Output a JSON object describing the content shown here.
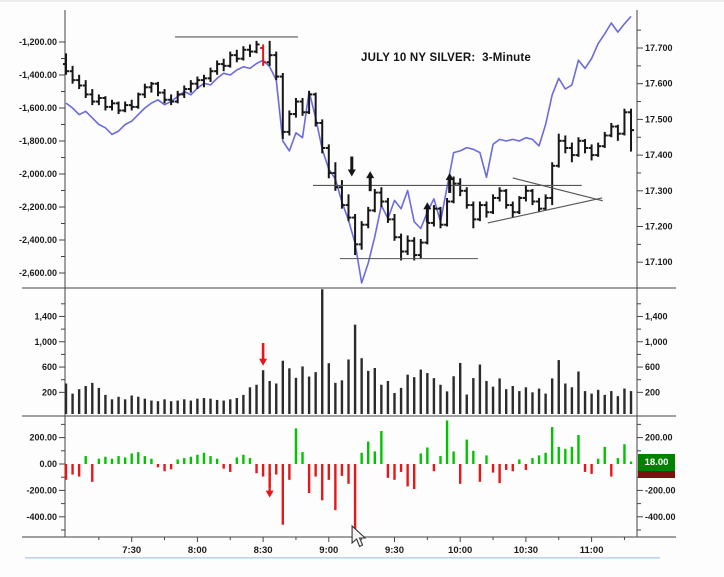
{
  "header": {
    "title": "JULY 10 NY SILVER:  3-Minute"
  },
  "last_value_badge": {
    "value": "18.00"
  },
  "colors": {
    "price_bar": "#161616",
    "highlight_bar": "#e81717",
    "ma_line": "#6b6bdf",
    "volume_bar": "#2b2b2b",
    "up_delta": "#00c400",
    "down_delta": "#e81717",
    "annotation": "#555555",
    "badge_bg": "#008200",
    "badge_underline": "#7c1010",
    "hairline": "#aecdf2",
    "axis": "#444444"
  },
  "chart_data": {
    "type": "ohlc+volume+delta multi-panel bar chart",
    "title": "JULY 10 NY SILVER:  3-Minute",
    "interval": "3-Minute",
    "x_ticks": [
      {
        "slot": 10,
        "label": "7:30"
      },
      {
        "slot": 20,
        "label": "8:00"
      },
      {
        "slot": 30,
        "label": "8:30"
      },
      {
        "slot": 40,
        "label": "9:00"
      },
      {
        "slot": 50,
        "label": "9:30"
      },
      {
        "slot": 60,
        "label": "10:00"
      },
      {
        "slot": 70,
        "label": "10:30"
      },
      {
        "slot": 80,
        "label": "11:00"
      }
    ],
    "axes": {
      "price_left": [
        {
          "v": -1200,
          "label": "-1,200.00"
        },
        {
          "v": -1400,
          "label": "-1,400.00"
        },
        {
          "v": -1600,
          "label": "-1,600.00"
        },
        {
          "v": -1800,
          "label": "-1,800.00"
        },
        {
          "v": -2000,
          "label": "-2,000.00"
        },
        {
          "v": -2200,
          "label": "-2,200.00"
        },
        {
          "v": -2400,
          "label": "-2,400.00"
        },
        {
          "v": -2600,
          "label": "-2,600.00"
        }
      ],
      "price_right": [
        {
          "v": 17.7,
          "label": "17.700"
        },
        {
          "v": 17.6,
          "label": "17.600"
        },
        {
          "v": 17.5,
          "label": "17.500"
        },
        {
          "v": 17.4,
          "label": "17.400"
        },
        {
          "v": 17.3,
          "label": "17.300"
        },
        {
          "v": 17.2,
          "label": "17.200"
        },
        {
          "v": 17.1,
          "label": "17.100"
        }
      ],
      "volume": [
        {
          "v": 1400,
          "label": "1,400"
        },
        {
          "v": 1000,
          "label": "1,000"
        },
        {
          "v": 600,
          "label": "600"
        },
        {
          "v": 200,
          "label": "200"
        }
      ],
      "delta_left": [
        {
          "v": 200,
          "label": "200.00"
        },
        {
          "v": 0,
          "label": "0.00"
        },
        {
          "v": -200,
          "label": "-200.00"
        },
        {
          "v": -400,
          "label": "-400.00"
        }
      ],
      "delta_right": [
        {
          "v": 200,
          "label": "200.00"
        },
        {
          "v": -200,
          "label": "-200.00"
        },
        {
          "v": -400,
          "label": "-400.00"
        }
      ]
    },
    "bars_ohlc": [
      [
        17.655,
        17.685,
        17.625,
        17.635
      ],
      [
        17.635,
        17.65,
        17.6,
        17.61
      ],
      [
        17.61,
        17.625,
        17.585,
        17.595
      ],
      [
        17.595,
        17.61,
        17.56,
        17.57
      ],
      [
        17.57,
        17.585,
        17.54,
        17.55
      ],
      [
        17.55,
        17.57,
        17.54,
        17.56
      ],
      [
        17.56,
        17.565,
        17.525,
        17.535
      ],
      [
        17.535,
        17.555,
        17.525,
        17.545
      ],
      [
        17.545,
        17.55,
        17.515,
        17.525
      ],
      [
        17.525,
        17.55,
        17.52,
        17.54
      ],
      [
        17.54,
        17.555,
        17.525,
        17.535
      ],
      [
        17.535,
        17.575,
        17.53,
        17.57
      ],
      [
        17.57,
        17.6,
        17.56,
        17.59
      ],
      [
        17.59,
        17.605,
        17.575,
        17.6
      ],
      [
        17.6,
        17.605,
        17.565,
        17.575
      ],
      [
        17.575,
        17.585,
        17.545,
        17.555
      ],
      [
        17.555,
        17.57,
        17.54,
        17.55
      ],
      [
        17.55,
        17.58,
        17.545,
        17.57
      ],
      [
        17.57,
        17.595,
        17.56,
        17.585
      ],
      [
        17.585,
        17.61,
        17.575,
        17.6
      ],
      [
        17.6,
        17.62,
        17.585,
        17.61
      ],
      [
        17.61,
        17.625,
        17.59,
        17.615
      ],
      [
        17.615,
        17.645,
        17.605,
        17.635
      ],
      [
        17.635,
        17.665,
        17.625,
        17.655
      ],
      [
        17.655,
        17.67,
        17.635,
        17.65
      ],
      [
        17.65,
        17.69,
        17.645,
        17.68
      ],
      [
        17.68,
        17.695,
        17.66,
        17.67
      ],
      [
        17.67,
        17.705,
        17.665,
        17.695
      ],
      [
        17.695,
        17.71,
        17.675,
        17.69
      ],
      [
        17.69,
        17.72,
        17.685,
        17.71
      ],
      [
        17.7,
        17.71,
        17.65,
        17.66
      ],
      [
        17.66,
        17.72,
        17.65,
        17.68
      ],
      [
        17.68,
        17.69,
        17.61,
        17.62
      ],
      [
        17.62,
        17.63,
        17.445,
        17.465
      ],
      [
        17.465,
        17.525,
        17.455,
        17.515
      ],
      [
        17.515,
        17.56,
        17.505,
        17.55
      ],
      [
        17.55,
        17.56,
        17.51,
        17.52
      ],
      [
        17.52,
        17.58,
        17.515,
        17.57
      ],
      [
        17.57,
        17.575,
        17.48,
        17.49
      ],
      [
        17.49,
        17.5,
        17.405,
        17.42
      ],
      [
        17.42,
        17.43,
        17.335,
        17.35
      ],
      [
        17.35,
        17.38,
        17.3,
        17.31
      ],
      [
        17.31,
        17.33,
        17.25,
        17.26
      ],
      [
        17.26,
        17.29,
        17.215,
        17.225
      ],
      [
        17.225,
        17.235,
        17.12,
        17.15
      ],
      [
        17.15,
        17.215,
        17.135,
        17.205
      ],
      [
        17.205,
        17.255,
        17.195,
        17.245
      ],
      [
        17.245,
        17.305,
        17.24,
        17.295
      ],
      [
        17.295,
        17.31,
        17.255,
        17.27
      ],
      [
        17.27,
        17.28,
        17.21,
        17.22
      ],
      [
        17.22,
        17.235,
        17.16,
        17.17
      ],
      [
        17.17,
        17.18,
        17.105,
        17.13
      ],
      [
        17.13,
        17.175,
        17.12,
        17.16
      ],
      [
        17.16,
        17.17,
        17.105,
        17.12
      ],
      [
        17.12,
        17.165,
        17.11,
        17.155
      ],
      [
        17.155,
        17.22,
        17.15,
        17.21
      ],
      [
        17.21,
        17.26,
        17.2,
        17.25
      ],
      [
        17.25,
        17.255,
        17.195,
        17.205
      ],
      [
        17.205,
        17.28,
        17.2,
        17.27
      ],
      [
        17.27,
        17.34,
        17.265,
        17.32
      ],
      [
        17.32,
        17.335,
        17.285,
        17.3
      ],
      [
        17.3,
        17.31,
        17.25,
        17.26
      ],
      [
        17.26,
        17.27,
        17.195,
        17.22
      ],
      [
        17.22,
        17.27,
        17.215,
        17.26
      ],
      [
        17.26,
        17.27,
        17.225,
        17.24
      ],
      [
        17.24,
        17.29,
        17.235,
        17.28
      ],
      [
        17.28,
        17.31,
        17.27,
        17.3
      ],
      [
        17.3,
        17.305,
        17.25,
        17.26
      ],
      [
        17.26,
        17.27,
        17.225,
        17.24
      ],
      [
        17.24,
        17.285,
        17.235,
        17.28
      ],
      [
        17.28,
        17.315,
        17.27,
        17.3
      ],
      [
        17.3,
        17.305,
        17.26,
        17.27
      ],
      [
        17.27,
        17.28,
        17.24,
        17.25
      ],
      [
        17.25,
        17.29,
        17.245,
        17.28
      ],
      [
        17.28,
        17.38,
        17.26,
        17.37
      ],
      [
        17.37,
        17.46,
        17.365,
        17.44
      ],
      [
        17.44,
        17.455,
        17.405,
        17.42
      ],
      [
        17.42,
        17.435,
        17.38,
        17.4
      ],
      [
        17.4,
        17.45,
        17.395,
        17.44
      ],
      [
        17.44,
        17.445,
        17.405,
        17.42
      ],
      [
        17.42,
        17.43,
        17.385,
        17.4
      ],
      [
        17.4,
        17.435,
        17.395,
        17.425
      ],
      [
        17.425,
        17.465,
        17.42,
        17.455
      ],
      [
        17.455,
        17.49,
        17.45,
        17.48
      ],
      [
        17.48,
        17.485,
        17.44,
        17.46
      ],
      [
        17.46,
        17.53,
        17.455,
        17.52
      ],
      [
        17.52,
        17.53,
        17.41,
        17.47
      ]
    ],
    "highlight_bar_index": 30,
    "cumulative_delta_line": [
      -1570,
      -1600,
      -1640,
      -1620,
      -1660,
      -1700,
      -1720,
      -1760,
      -1740,
      -1700,
      -1680,
      -1640,
      -1600,
      -1570,
      -1550,
      -1580,
      -1560,
      -1530,
      -1500,
      -1520,
      -1480,
      -1450,
      -1460,
      -1420,
      -1390,
      -1400,
      -1370,
      -1350,
      -1360,
      -1330,
      -1310,
      -1350,
      -1430,
      -1800,
      -1860,
      -1750,
      -1780,
      -1500,
      -1660,
      -1850,
      -1970,
      -2030,
      -2170,
      -2280,
      -2420,
      -2660,
      -2540,
      -2380,
      -2190,
      -2270,
      -2160,
      -2210,
      -2100,
      -2290,
      -2330,
      -2230,
      -2150,
      -2290,
      -2080,
      -1870,
      -1860,
      -1840,
      -1850,
      -1870,
      -2020,
      -1820,
      -1790,
      -1800,
      -1790,
      -1800,
      -1780,
      -1790,
      -1830,
      -1700,
      -1520,
      -1420,
      -1485,
      -1460,
      -1310,
      -1360,
      -1300,
      -1210,
      -1150,
      -1085,
      -1140,
      -1090,
      -1045
    ],
    "volume": [
      340,
      180,
      250,
      300,
      350,
      270,
      160,
      90,
      130,
      90,
      150,
      130,
      100,
      70,
      60,
      90,
      60,
      70,
      90,
      70,
      100,
      110,
      100,
      80,
      70,
      90,
      110,
      160,
      280,
      320,
      550,
      380,
      340,
      700,
      580,
      430,
      610,
      450,
      520,
      1830,
      660,
      350,
      390,
      720,
      1270,
      740,
      540,
      585,
      320,
      380,
      190,
      270,
      480,
      440,
      560,
      505,
      425,
      320,
      215,
      455,
      665,
      165,
      425,
      640,
      380,
      290,
      420,
      250,
      300,
      220,
      280,
      200,
      260,
      180,
      420,
      710,
      340,
      280,
      530,
      220,
      180,
      240,
      160,
      220,
      140,
      260,
      220
    ],
    "delta": [
      -120,
      -80,
      -95,
      60,
      -135,
      40,
      55,
      40,
      60,
      50,
      80,
      90,
      60,
      40,
      -25,
      -55,
      -40,
      35,
      45,
      55,
      70,
      85,
      60,
      40,
      -35,
      -60,
      50,
      70,
      45,
      -70,
      -95,
      -185,
      -80,
      -460,
      -120,
      270,
      90,
      -220,
      -95,
      -275,
      -120,
      -350,
      -90,
      -150,
      -540,
      85,
      170,
      95,
      250,
      -105,
      -120,
      -60,
      -170,
      -190,
      80,
      125,
      -55,
      60,
      330,
      95,
      -150,
      185,
      100,
      -135,
      65,
      -65,
      -145,
      -45,
      -55,
      35,
      -45,
      45,
      65,
      85,
      280,
      130,
      115,
      130,
      220,
      -60,
      -75,
      40,
      130,
      -95,
      45,
      150,
      18
    ],
    "annotations": {
      "price_lines": [
        {
          "name": "highs-trendline",
          "price1": 17.731,
          "price2": 17.731,
          "slot1": 16.6,
          "slot2": 35.3
        },
        {
          "name": "resistance-line",
          "price1": 17.315,
          "price2": 17.315,
          "slot1": 37.6,
          "slot2": 78.5
        },
        {
          "name": "support-line",
          "price1": 17.11,
          "price2": 17.11,
          "slot1": 41.7,
          "slot2": 62.7
        },
        {
          "name": "pennant-upper",
          "price1": 17.336,
          "price2": 17.272,
          "slot1": 68.0,
          "slot2": 81.7
        },
        {
          "name": "pennant-lower",
          "price1": 17.21,
          "price2": 17.28,
          "slot1": 64.2,
          "slot2": 81.6
        }
      ],
      "price_arrows": [
        {
          "dir": "down",
          "slot": 43.5,
          "tip_price": 17.34,
          "color": "#161616"
        },
        {
          "dir": "up",
          "slot": 46.3,
          "tip_price": 17.355,
          "color": "#161616"
        },
        {
          "dir": "up",
          "slot": 55.0,
          "tip_price": 17.268,
          "color": "#161616"
        },
        {
          "dir": "up",
          "slot": 58.4,
          "tip_price": 17.35,
          "color": "#161616"
        }
      ],
      "volume_arrow": {
        "dir": "down",
        "slot": 30,
        "tip_value": 620,
        "tail_value": 980,
        "color": "#e81717"
      },
      "delta_arrow": {
        "dir": "down",
        "slot": 31,
        "tip_value": -255,
        "tail_value": -70,
        "color": "#e81717",
        "dashed": true
      },
      "mouse_cursor": {
        "panel": "delta",
        "slot": 44
      }
    }
  }
}
